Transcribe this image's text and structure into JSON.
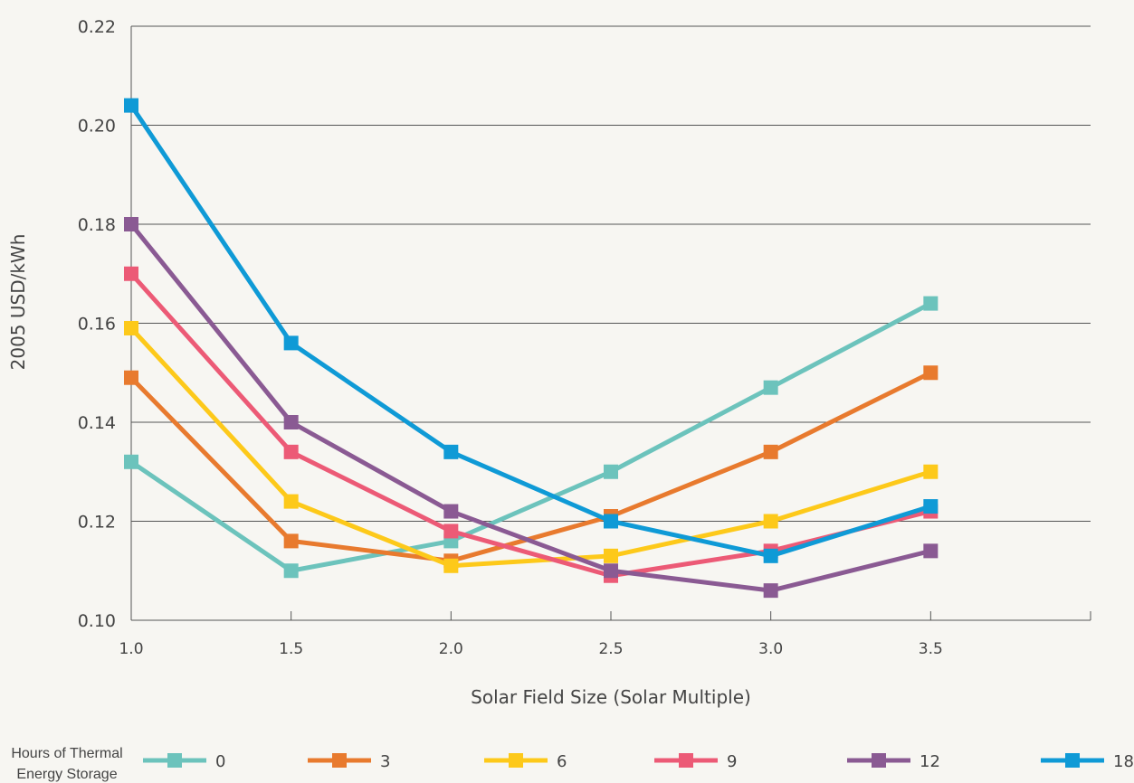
{
  "chart_data": {
    "type": "line",
    "xlabel": "Solar Field Size (Solar Multiple)",
    "ylabel": "2005 USD/kWh",
    "x": [
      1.0,
      1.5,
      2.0,
      2.5,
      3.0,
      3.5
    ],
    "xlim": [
      1.0,
      4.0
    ],
    "ylim": [
      0.1,
      0.22
    ],
    "x_ticks": [
      "1.0",
      "1.5",
      "2.0",
      "2.5",
      "3.0",
      "3.5"
    ],
    "y_ticks": [
      "0.10",
      "0.12",
      "0.14",
      "0.16",
      "0.18",
      "0.20",
      "0.22"
    ],
    "grid": "horizontal",
    "legend_title_line1": "Hours of Thermal",
    "legend_title_line2": "Energy Storage",
    "legend_position": "bottom",
    "series": [
      {
        "name": "0",
        "color": "#6cc3bc",
        "values": [
          0.132,
          0.11,
          0.116,
          0.13,
          0.147,
          0.164
        ]
      },
      {
        "name": "3",
        "color": "#e87a2e",
        "values": [
          0.149,
          0.116,
          0.112,
          0.121,
          0.134,
          0.15
        ]
      },
      {
        "name": "6",
        "color": "#fdc91a",
        "values": [
          0.159,
          0.124,
          0.111,
          0.113,
          0.12,
          0.13
        ]
      },
      {
        "name": "9",
        "color": "#ec5a76",
        "values": [
          0.17,
          0.134,
          0.118,
          0.109,
          0.114,
          0.122
        ]
      },
      {
        "name": "12",
        "color": "#8a5a93",
        "values": [
          0.18,
          0.14,
          0.122,
          0.11,
          0.106,
          0.114
        ]
      },
      {
        "name": "18",
        "color": "#0f9ad6",
        "values": [
          0.204,
          0.156,
          0.134,
          0.12,
          0.113,
          0.123
        ]
      }
    ]
  }
}
